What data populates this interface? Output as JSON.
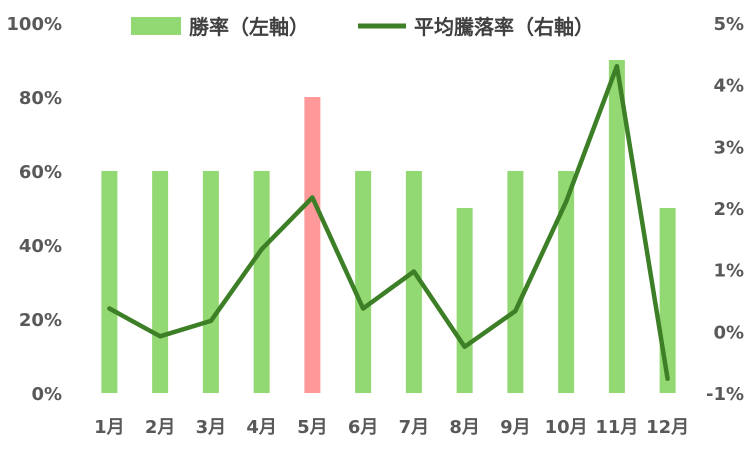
{
  "chart_data": {
    "type": "bar+line",
    "categories": [
      "1月",
      "2月",
      "3月",
      "4月",
      "5月",
      "6月",
      "7月",
      "8月",
      "9月",
      "10月",
      "11月",
      "12月"
    ],
    "series": [
      {
        "name": "勝率（左軸）",
        "type": "bar",
        "axis": "left",
        "values": [
          60,
          60,
          60,
          60,
          80,
          60,
          60,
          50,
          60,
          60,
          90,
          50
        ],
        "color": "#92d873",
        "highlight": {
          "index": 4,
          "color": "#ff9999"
        }
      },
      {
        "name": "平均騰落率（右軸）",
        "type": "line",
        "axis": "right",
        "values": [
          0.37,
          -0.08,
          0.17,
          1.33,
          2.17,
          0.37,
          0.97,
          -0.25,
          0.33,
          2.1,
          4.3,
          -0.77
        ],
        "color": "#3d7f26"
      }
    ],
    "y_left": {
      "min": 0,
      "max": 100,
      "step": 20,
      "tick_labels": [
        "0%",
        "20%",
        "40%",
        "60%",
        "80%",
        "100%"
      ]
    },
    "y_right": {
      "min": -1,
      "max": 5,
      "step": 1,
      "tick_labels": [
        "-1%",
        "0%",
        "1%",
        "2%",
        "3%",
        "4%",
        "5%"
      ]
    },
    "grid": false,
    "legend_position": "top"
  }
}
